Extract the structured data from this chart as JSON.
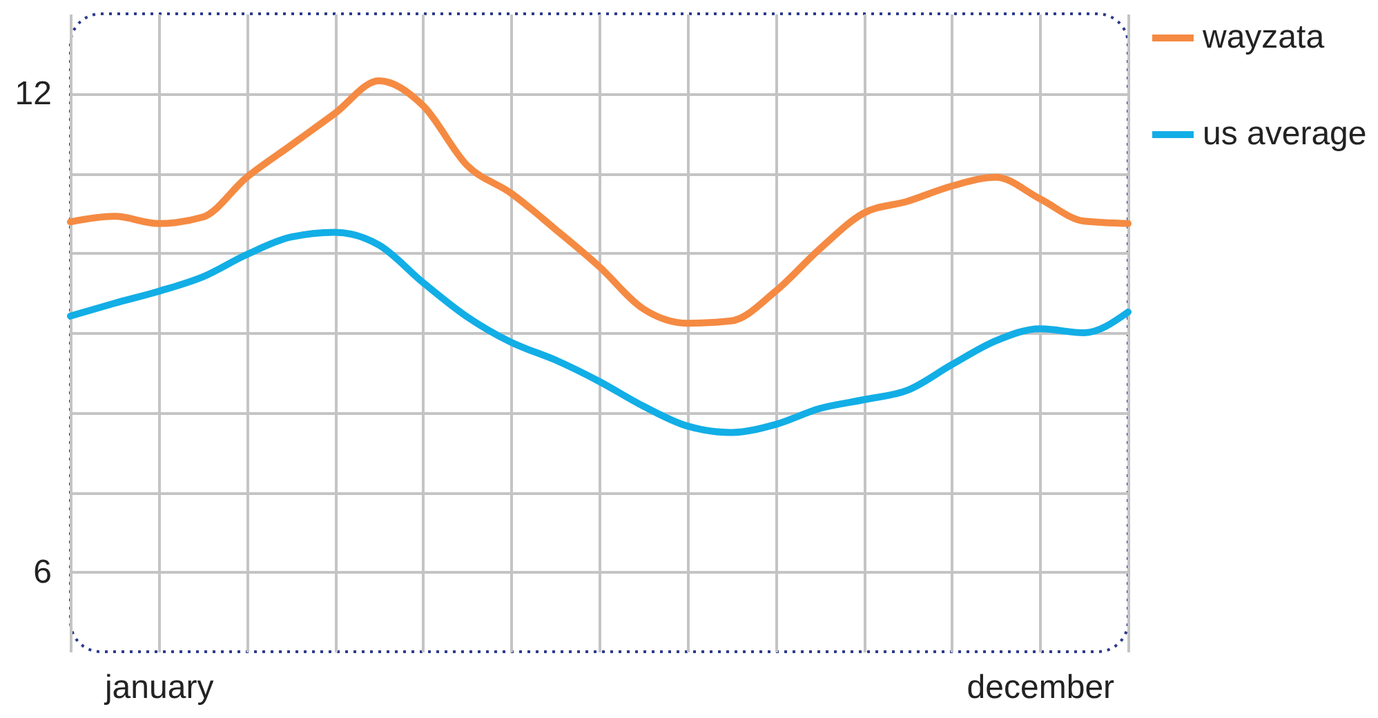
{
  "chart_data": {
    "type": "line",
    "categories": [
      null,
      null,
      "january",
      null,
      null,
      null,
      null,
      null,
      null,
      null,
      null,
      null,
      null,
      null,
      null,
      null,
      null,
      null,
      null,
      null,
      null,
      null,
      "december",
      null,
      null
    ],
    "ylim": [
      5,
      13
    ],
    "yticks": [
      6,
      {
        "value": 7,
        "label": null
      },
      {
        "value": 8,
        "label": null
      },
      {
        "value": 9,
        "label": null
      },
      {
        "value": 10,
        "label": null
      },
      {
        "value": 11,
        "label": null
      },
      12
    ],
    "grid": true,
    "legend": "right",
    "line_style": "solid",
    "marker": "none",
    "series": [
      {
        "name": "wayzata",
        "color": "#f58a42",
        "values": [
          10.39,
          10.46,
          10.37,
          10.45,
          10.95,
          11.35,
          11.75,
          12.16,
          11.85,
          11.1,
          10.75,
          10.3,
          9.83,
          9.3,
          9.12,
          9.15,
          9.52,
          10.05,
          10.5,
          10.65,
          10.84,
          10.95,
          10.68,
          10.4,
          10.37
        ]
      },
      {
        "name": "us average",
        "color": "#12aee6",
        "values": [
          9.21,
          9.37,
          9.52,
          9.7,
          9.98,
          10.2,
          10.26,
          10.1,
          9.63,
          9.2,
          8.88,
          8.66,
          8.39,
          8.08,
          7.83,
          7.75,
          7.85,
          8.05,
          8.16,
          8.28,
          8.6,
          8.9,
          9.05,
          9.0,
          9.26
        ]
      }
    ]
  }
}
